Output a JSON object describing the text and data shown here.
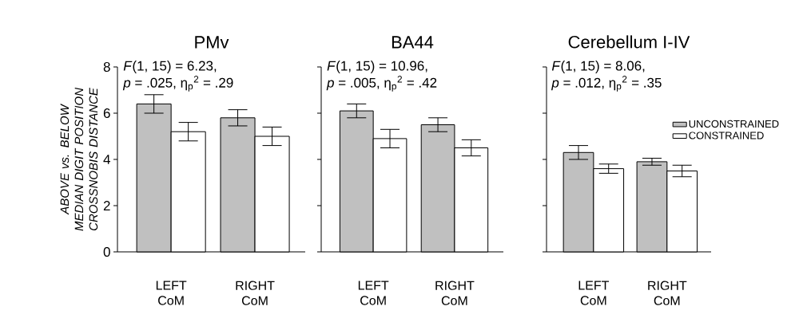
{
  "chart_data": [
    {
      "type": "bar",
      "title": "PMv",
      "ylabel": "ABOVE vs. BELOW MEDIAN DIGIT POSITION CROSSNOBIS DISTANCE",
      "categories": [
        "LEFT CoM",
        "RIGHT CoM"
      ],
      "series": [
        {
          "color": "#c0c0c0",
          "values": [
            6.4,
            5.8
          ],
          "errors": [
            0.4,
            0.35
          ]
        },
        {
          "color": "#ffffff",
          "values": [
            5.2,
            5.0
          ],
          "errors": [
            0.4,
            0.4
          ]
        }
      ],
      "ylim": [
        0,
        8
      ],
      "yticks": [
        0,
        2,
        4,
        6,
        8
      ],
      "annotations": [
        "*F*(1, 15) = 6.23,",
        "*p* = .025, η$_{p}$$^{2}$ = .29"
      ]
    },
    {
      "type": "bar",
      "title": "BA44",
      "categories": [
        "LEFT CoM",
        "RIGHT CoM"
      ],
      "series": [
        {
          "color": "#c0c0c0",
          "values": [
            6.1,
            5.5
          ],
          "errors": [
            0.3,
            0.3
          ]
        },
        {
          "color": "#ffffff",
          "values": [
            4.9,
            4.5
          ],
          "errors": [
            0.4,
            0.35
          ]
        }
      ],
      "ylim": [
        0,
        8
      ],
      "yticks": [
        0,
        2,
        4,
        6,
        8
      ],
      "tick_labels": "x",
      "annotations": [
        "*F*(1, 15) = 10.96,",
        "*p* = .005, η$_{p}$$^{2}$ = .42"
      ]
    },
    {
      "type": "bar",
      "title": "Cerebellum I-IV",
      "categories": [
        "LEFT CoM",
        "RIGHT CoM"
      ],
      "series": [
        {
          "name": "UNCONSTRAINED",
          "color": "#c0c0c0",
          "values": [
            4.3,
            3.9
          ],
          "errors": [
            0.3,
            0.15
          ]
        },
        {
          "name": "CONSTRAINED",
          "color": "#ffffff",
          "values": [
            3.6,
            3.5
          ],
          "errors": [
            0.2,
            0.25
          ]
        }
      ],
      "ylim": [
        0,
        8
      ],
      "yticks": [
        0,
        2,
        4,
        6,
        8
      ],
      "tick_labels": "x",
      "legend": "top right",
      "annotations": [
        "*F*(1, 15) = 8.06,",
        "*p* = .012, η$_{p}$$^{2}$ = .35"
      ]
    }
  ]
}
